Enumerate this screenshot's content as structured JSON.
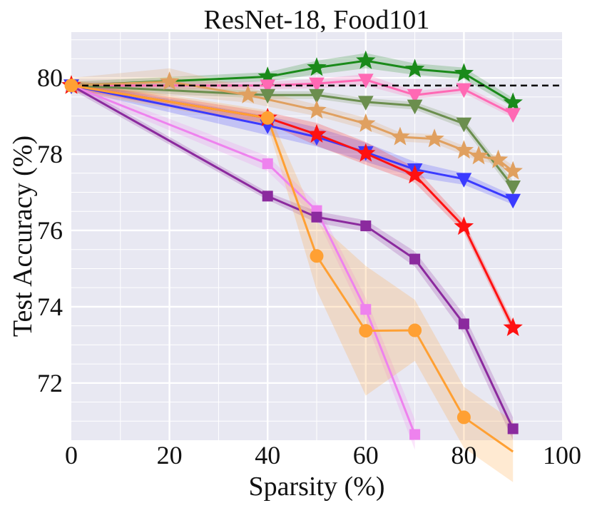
{
  "chart_data": {
    "type": "line",
    "title": "ResNet-18, Food101",
    "xlabel": "Sparsity (%)",
    "ylabel": "Test Accuracy (%)",
    "xlim": [
      0,
      100
    ],
    "ylim": [
      70.5,
      81.2
    ],
    "xticks": [
      "0",
      "20",
      "40",
      "60",
      "80",
      "100"
    ],
    "yticks": [
      "72",
      "74",
      "76",
      "78",
      "80"
    ],
    "grid": true,
    "reference_line": {
      "y": 79.8,
      "style": "dashed",
      "color": "#000000"
    },
    "series": [
      {
        "name": "green-star",
        "color": "#1a8a1a",
        "marker": "star",
        "x": [
          0,
          40,
          50,
          60,
          70,
          80,
          90
        ],
        "y": [
          79.8,
          80.03,
          80.27,
          80.45,
          80.23,
          80.12,
          79.35
        ],
        "band": [
          0.1,
          0.12,
          0.18,
          0.2,
          0.15,
          0.15,
          0.12
        ]
      },
      {
        "name": "pink-triangle",
        "color": "#ff69b4",
        "marker": "triangle-down",
        "x": [
          0,
          40,
          50,
          60,
          70,
          80,
          90
        ],
        "y": [
          79.8,
          79.8,
          79.85,
          79.95,
          79.55,
          79.7,
          79.05
        ],
        "band": [
          0.1,
          0.1,
          0.12,
          0.15,
          0.1,
          0.1,
          0.1
        ]
      },
      {
        "name": "olive-triangle",
        "color": "#6b8e4e",
        "marker": "triangle-down",
        "x": [
          0,
          40,
          50,
          60,
          70,
          80,
          90
        ],
        "y": [
          79.8,
          79.55,
          79.55,
          79.37,
          79.27,
          78.8,
          77.15
        ],
        "band": [
          0.1,
          0.1,
          0.1,
          0.1,
          0.1,
          0.12,
          0.15
        ]
      },
      {
        "name": "tan-star",
        "color": "#e0a060",
        "marker": "star",
        "x": [
          0,
          20,
          36,
          50,
          60,
          67,
          74,
          80,
          83,
          87,
          90
        ],
        "y": [
          79.8,
          79.9,
          79.55,
          79.15,
          78.8,
          78.45,
          78.4,
          78.1,
          77.95,
          77.85,
          77.55
        ],
        "band": [
          0.2,
          0.35,
          0.2,
          0.15,
          0.15,
          0.12,
          0.12,
          0.12,
          0.12,
          0.12,
          0.15
        ]
      },
      {
        "name": "blue-triangle",
        "color": "#3a3aff",
        "marker": "triangle-down",
        "x": [
          0,
          40,
          50,
          60,
          70,
          80,
          90
        ],
        "y": [
          79.8,
          78.75,
          78.45,
          78.05,
          77.6,
          77.35,
          76.8
        ],
        "band": [
          0.1,
          0.25,
          0.25,
          0.25,
          0.2,
          0.15,
          0.12
        ]
      },
      {
        "name": "red-star",
        "color": "#ff1111",
        "marker": "star",
        "x": [
          0,
          40,
          50,
          60,
          70,
          80,
          90
        ],
        "y": [
          79.8,
          78.95,
          78.52,
          78.02,
          77.45,
          76.1,
          73.45
        ],
        "band": [
          0.1,
          0.15,
          0.3,
          0.3,
          0.2,
          0.15,
          0.15
        ]
      },
      {
        "name": "violet-square",
        "color": "#ee82ee",
        "marker": "square",
        "x": [
          0,
          40,
          50,
          60,
          70
        ],
        "y": [
          79.8,
          77.75,
          76.52,
          73.93,
          70.65
        ],
        "band": [
          0.1,
          0.2,
          0.2,
          0.3,
          0.4
        ]
      },
      {
        "name": "purple-square",
        "color": "#8b2a9e",
        "marker": "square",
        "x": [
          0,
          40,
          50,
          60,
          70,
          80,
          90
        ],
        "y": [
          79.8,
          76.9,
          76.35,
          76.12,
          75.25,
          73.55,
          70.8
        ],
        "band": [
          0.1,
          0.1,
          0.15,
          0.15,
          0.2,
          0.25,
          0.3
        ]
      },
      {
        "name": "orange-circle",
        "color": "#ffa033",
        "marker": "circle",
        "x": [
          0,
          40,
          50,
          60,
          70,
          80,
          90
        ],
        "y": [
          79.8,
          78.95,
          75.33,
          73.37,
          73.38,
          71.1,
          70.2
        ],
        "band": [
          0.15,
          0.2,
          0.9,
          1.7,
          0.8,
          0.8,
          0.8
        ]
      }
    ]
  }
}
